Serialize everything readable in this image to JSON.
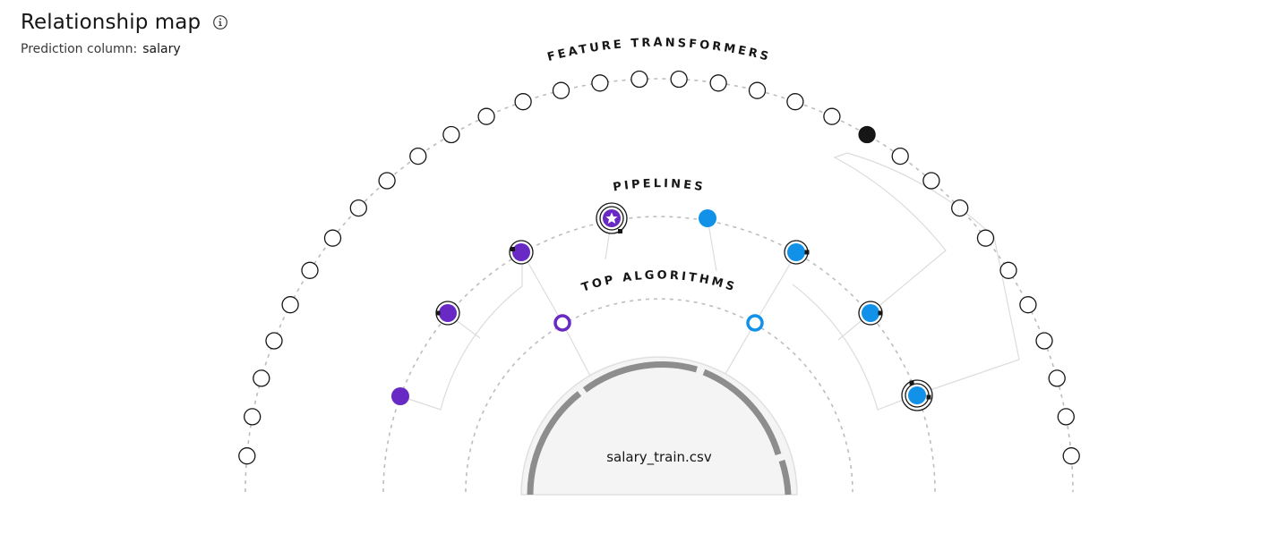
{
  "header": {
    "title": "Relationship map",
    "info_icon": "info-icon",
    "prediction_label": "Prediction column:",
    "prediction_value": "salary"
  },
  "map": {
    "center_label": "salary_train.csv",
    "rings": {
      "transformers": "FEATURE TRANSFORMERS",
      "pipelines": "PIPELINES",
      "algorithms": "TOP ALGORITHMS"
    },
    "colors": {
      "purple": "#6929c4",
      "blue": "#1192e8",
      "black": "#161616",
      "gray": "#8d8d8d",
      "light_gray": "#e0e0e0",
      "center_fill": "#f4f4f4"
    },
    "feature_transformers": {
      "count": 32,
      "selected_index": 21
    },
    "pipelines": [
      {
        "id": "P1",
        "color": "purple",
        "state": "plain"
      },
      {
        "id": "P2",
        "color": "purple",
        "state": "ringed"
      },
      {
        "id": "P3",
        "color": "purple",
        "state": "ringed"
      },
      {
        "id": "P4",
        "color": "purple",
        "state": "starred"
      },
      {
        "id": "P5",
        "color": "blue",
        "state": "plain"
      },
      {
        "id": "P6",
        "color": "blue",
        "state": "ringed"
      },
      {
        "id": "P7",
        "color": "blue",
        "state": "ringed"
      },
      {
        "id": "P8",
        "color": "blue",
        "state": "double-ringed"
      }
    ],
    "algorithms": [
      {
        "id": "A1",
        "color": "purple"
      },
      {
        "id": "A2",
        "color": "blue"
      }
    ]
  }
}
